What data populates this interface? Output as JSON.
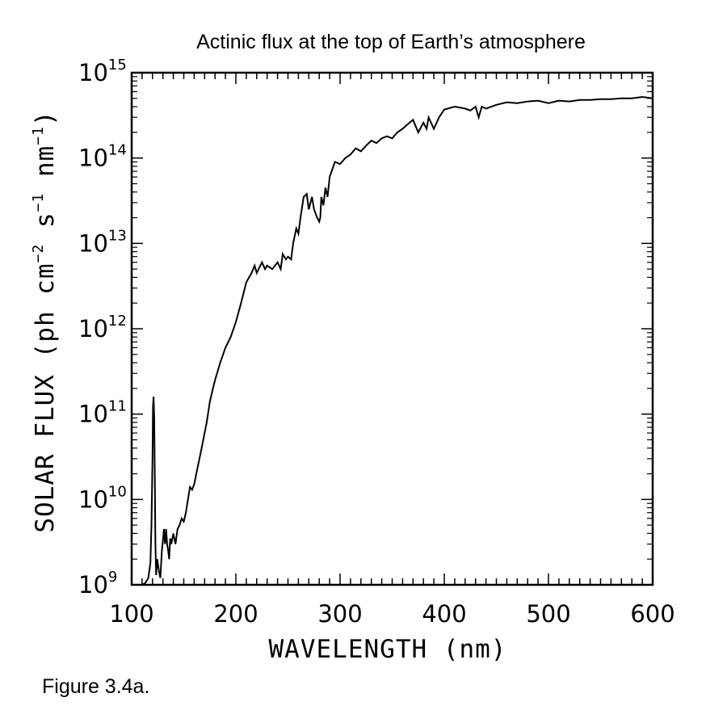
{
  "chart_data": {
    "type": "line",
    "title": "Actinic flux at the top of Earth’s atmosphere",
    "xlabel": "WAVELENGTH (nm)",
    "ylabel": {
      "main": "SOLAR FLUX (ph cm",
      "exp1": "−2",
      "mid1": " s",
      "exp2": "−1",
      "mid2": " nm",
      "exp3": "−1",
      "tail": ")"
    },
    "xlim": [
      100,
      600
    ],
    "ylim": [
      1000000000.0,
      1000000000000000.0
    ],
    "yscale": "log",
    "xticks": [
      100,
      200,
      300,
      400,
      500,
      600
    ],
    "yticks": [
      {
        "value": 1000000000.0,
        "base": "10",
        "exp": "9"
      },
      {
        "value": 10000000000.0,
        "base": "10",
        "exp": "10"
      },
      {
        "value": 100000000000.0,
        "base": "10",
        "exp": "11"
      },
      {
        "value": 1000000000000.0,
        "base": "10",
        "exp": "12"
      },
      {
        "value": 10000000000000.0,
        "base": "10",
        "exp": "13"
      },
      {
        "value": 100000000000000.0,
        "base": "10",
        "exp": "14"
      },
      {
        "value": 1000000000000000.0,
        "base": "10",
        "exp": "15"
      }
    ],
    "series": [
      {
        "x": [
          110,
          113,
          116,
          118,
          119,
          120,
          120.5,
          121,
          121.6,
          122.2,
          122.8,
          123.5,
          124.5,
          126,
          127.5,
          129,
          131,
          132,
          133,
          134,
          135,
          136,
          137,
          138,
          140,
          142,
          144,
          146,
          148,
          150,
          152,
          154,
          156,
          158,
          160,
          162,
          165,
          168,
          170,
          172,
          175,
          178,
          180,
          185,
          190,
          195,
          200,
          205,
          210,
          215,
          218,
          220,
          225,
          228,
          230,
          235,
          240,
          243,
          245,
          248,
          250,
          253,
          255,
          258,
          260,
          262,
          265,
          268,
          270,
          273,
          275,
          278,
          280,
          281,
          282,
          284,
          286,
          288,
          290,
          295,
          300,
          305,
          310,
          315,
          320,
          325,
          330,
          335,
          340,
          345,
          350,
          355,
          360,
          365,
          370,
          375,
          380,
          383,
          385,
          390,
          395,
          400,
          410,
          420,
          425,
          430,
          433,
          436,
          440,
          450,
          460,
          470,
          480,
          490,
          500,
          510,
          520,
          530,
          540,
          550,
          560,
          570,
          580,
          590,
          600
        ],
        "y": [
          1000000000.0,
          1050000000.0,
          1200000000.0,
          1800000000.0,
          5000000000.0,
          30000000000.0,
          120000000000.0,
          160000000000.0,
          90000000000.0,
          20000000000.0,
          3000000000.0,
          1300000000.0,
          2000000000.0,
          1500000000.0,
          1200000000.0,
          2500000000.0,
          4500000000.0,
          3000000000.0,
          4500000000.0,
          3000000000.0,
          2500000000.0,
          2000000000.0,
          3500000000.0,
          3000000000.0,
          4000000000.0,
          3000000000.0,
          4500000000.0,
          5000000000.0,
          6000000000.0,
          5500000000.0,
          7000000000.0,
          10000000000.0,
          14000000000.0,
          13000000000.0,
          15000000000.0,
          20000000000.0,
          30000000000.0,
          45000000000.0,
          60000000000.0,
          80000000000.0,
          140000000000.0,
          200000000000.0,
          250000000000.0,
          400000000000.0,
          600000000000.0,
          800000000000.0,
          1200000000000.0,
          2000000000000.0,
          3500000000000.0,
          4500000000000.0,
          5500000000000.0,
          4500000000000.0,
          6000000000000.0,
          5000000000000.0,
          5500000000000.0,
          5000000000000.0,
          6000000000000.0,
          5000000000000.0,
          7500000000000.0,
          6500000000000.0,
          7000000000000.0,
          6500000000000.0,
          10000000000000.0,
          15000000000000.0,
          13000000000000.0,
          20000000000000.0,
          35000000000000.0,
          38000000000000.0,
          25000000000000.0,
          35000000000000.0,
          25000000000000.0,
          20000000000000.0,
          18000000000000.0,
          20000000000000.0,
          35000000000000.0,
          28000000000000.0,
          45000000000000.0,
          35000000000000.0,
          60000000000000.0,
          90000000000000.0,
          85000000000000.0,
          100000000000000.0,
          110000000000000.0,
          130000000000000.0,
          120000000000000.0,
          140000000000000.0,
          160000000000000.0,
          150000000000000.0,
          170000000000000.0,
          180000000000000.0,
          170000000000000.0,
          200000000000000.0,
          220000000000000.0,
          250000000000000.0,
          280000000000000.0,
          200000000000000.0,
          260000000000000.0,
          220000000000000.0,
          300000000000000.0,
          220000000000000.0,
          300000000000000.0,
          370000000000000.0,
          400000000000000.0,
          380000000000000.0,
          360000000000000.0,
          400000000000000.0,
          300000000000000.0,
          400000000000000.0,
          380000000000000.0,
          420000000000000.0,
          450000000000000.0,
          440000000000000.0,
          460000000000000.0,
          470000000000000.0,
          440000000000000.0,
          470000000000000.0,
          460000000000000.0,
          480000000000000.0,
          480000000000000.0,
          490000000000000.0,
          490000000000000.0,
          500000000000000.0,
          500000000000000.0,
          520000000000000.0,
          500000000000000.0
        ]
      }
    ]
  },
  "caption": "Figure 3.4a."
}
